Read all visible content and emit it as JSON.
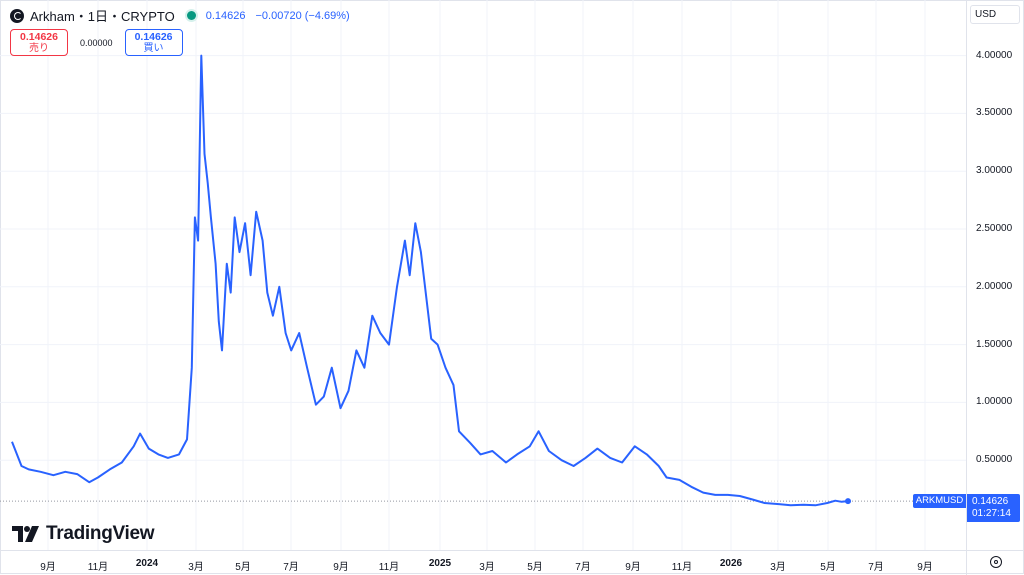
{
  "legend": {
    "symbol": "Arkham・1日・CRYPTO",
    "last": "0.14626",
    "change": "−0.00720 (−4.69%)"
  },
  "trade": {
    "sell_price": "0.14626",
    "sell_label": "売り",
    "spread": "0.00000",
    "buy_price": "0.14626",
    "buy_label": "買い"
  },
  "currency": "USD",
  "price_tag": {
    "symbol": "ARKMUSD",
    "price": "0.14626",
    "countdown": "01:27:14"
  },
  "brand": "TradingView",
  "chart_data": {
    "type": "line",
    "series": [
      {
        "color": "#2962ff",
        "points": [
          [
            "2023-07-20",
            0.66
          ],
          [
            "2023-08-01",
            0.45
          ],
          [
            "2023-08-10",
            0.42
          ],
          [
            "2023-08-25",
            0.4
          ],
          [
            "2023-09-10",
            0.37
          ],
          [
            "2023-09-25",
            0.4
          ],
          [
            "2023-10-10",
            0.38
          ],
          [
            "2023-10-25",
            0.31
          ],
          [
            "2023-11-05",
            0.35
          ],
          [
            "2023-11-20",
            0.42
          ],
          [
            "2023-12-05",
            0.48
          ],
          [
            "2023-12-20",
            0.62
          ],
          [
            "2023-12-28",
            0.73
          ],
          [
            "2024-01-08",
            0.6
          ],
          [
            "2024-01-20",
            0.55
          ],
          [
            "2024-02-01",
            0.52
          ],
          [
            "2024-02-15",
            0.55
          ],
          [
            "2024-02-25",
            0.68
          ],
          [
            "2024-03-02",
            1.3
          ],
          [
            "2024-03-06",
            2.6
          ],
          [
            "2024-03-10",
            2.4
          ],
          [
            "2024-03-14",
            4.0
          ],
          [
            "2024-03-18",
            3.15
          ],
          [
            "2024-03-22",
            2.9
          ],
          [
            "2024-03-26",
            2.6
          ],
          [
            "2024-04-01",
            2.2
          ],
          [
            "2024-04-05",
            1.7
          ],
          [
            "2024-04-09",
            1.45
          ],
          [
            "2024-04-15",
            2.2
          ],
          [
            "2024-04-20",
            1.95
          ],
          [
            "2024-04-25",
            2.6
          ],
          [
            "2024-05-01",
            2.3
          ],
          [
            "2024-05-08",
            2.55
          ],
          [
            "2024-05-15",
            2.1
          ],
          [
            "2024-05-22",
            2.65
          ],
          [
            "2024-05-30",
            2.4
          ],
          [
            "2024-06-05",
            1.95
          ],
          [
            "2024-06-12",
            1.75
          ],
          [
            "2024-06-20",
            2.0
          ],
          [
            "2024-06-28",
            1.6
          ],
          [
            "2024-07-05",
            1.45
          ],
          [
            "2024-07-15",
            1.6
          ],
          [
            "2024-07-25",
            1.3
          ],
          [
            "2024-08-05",
            0.98
          ],
          [
            "2024-08-15",
            1.05
          ],
          [
            "2024-08-25",
            1.3
          ],
          [
            "2024-09-05",
            0.95
          ],
          [
            "2024-09-15",
            1.1
          ],
          [
            "2024-09-25",
            1.45
          ],
          [
            "2024-10-05",
            1.3
          ],
          [
            "2024-10-15",
            1.75
          ],
          [
            "2024-10-25",
            1.6
          ],
          [
            "2024-11-05",
            1.5
          ],
          [
            "2024-11-15",
            2.0
          ],
          [
            "2024-11-25",
            2.4
          ],
          [
            "2024-12-01",
            2.1
          ],
          [
            "2024-12-08",
            2.55
          ],
          [
            "2024-12-15",
            2.3
          ],
          [
            "2024-12-22",
            1.9
          ],
          [
            "2024-12-28",
            1.55
          ],
          [
            "2025-01-05",
            1.5
          ],
          [
            "2025-01-15",
            1.3
          ],
          [
            "2025-01-25",
            1.15
          ],
          [
            "2025-02-01",
            0.75
          ],
          [
            "2025-02-15",
            0.65
          ],
          [
            "2025-02-28",
            0.55
          ],
          [
            "2025-03-15",
            0.58
          ],
          [
            "2025-04-01",
            0.48
          ],
          [
            "2025-04-15",
            0.55
          ],
          [
            "2025-05-01",
            0.62
          ],
          [
            "2025-05-12",
            0.75
          ],
          [
            "2025-05-25",
            0.58
          ],
          [
            "2025-06-10",
            0.5
          ],
          [
            "2025-06-25",
            0.45
          ],
          [
            "2025-07-10",
            0.52
          ],
          [
            "2025-07-25",
            0.6
          ],
          [
            "2025-08-10",
            0.52
          ],
          [
            "2025-08-25",
            0.48
          ],
          [
            "2025-09-10",
            0.62
          ],
          [
            "2025-09-25",
            0.55
          ],
          [
            "2025-10-10",
            0.45
          ],
          [
            "2025-10-20",
            0.35
          ],
          [
            "2025-11-05",
            0.33
          ],
          [
            "2025-11-20",
            0.27
          ],
          [
            "2025-12-05",
            0.22
          ],
          [
            "2025-12-20",
            0.2
          ],
          [
            "2026-01-05",
            0.2
          ],
          [
            "2026-01-20",
            0.19
          ],
          [
            "2026-02-05",
            0.16
          ],
          [
            "2026-02-20",
            0.13
          ],
          [
            "2026-03-10",
            0.12
          ],
          [
            "2026-03-25",
            0.11
          ],
          [
            "2026-04-10",
            0.115
          ],
          [
            "2026-04-25",
            0.11
          ],
          [
            "2026-05-10",
            0.13
          ],
          [
            "2026-05-20",
            0.15
          ],
          [
            "2026-05-28",
            0.14
          ],
          [
            "2026-06-05",
            0.146
          ]
        ]
      }
    ],
    "y_ticks": [
      "4.00000",
      "3.50000",
      "3.00000",
      "2.50000",
      "2.00000",
      "1.50000",
      "1.00000",
      "0.50000"
    ],
    "x_ticks": [
      "9月",
      "11月",
      "2024",
      "3月",
      "5月",
      "7月",
      "9月",
      "11月",
      "2025",
      "3月",
      "5月",
      "7月",
      "9月",
      "11月",
      "2026",
      "3月",
      "5月",
      "7月",
      "9月"
    ],
    "last_price_line": 0.14626
  }
}
